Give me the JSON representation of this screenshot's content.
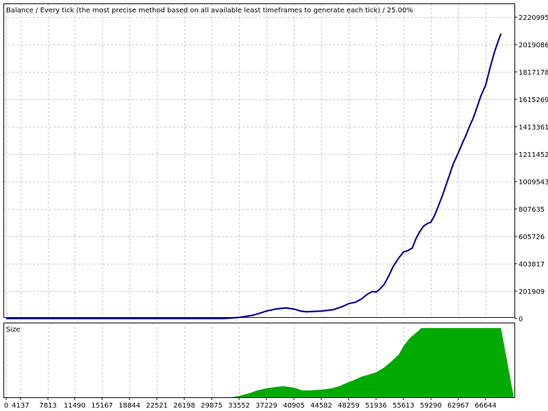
{
  "chart_data": [
    {
      "type": "line",
      "title": "Balance / Every tick (the most precise method based on all available least timeframes to generate each tick) / 25.00%",
      "x_ticks": [
        "0",
        "4137",
        "7813",
        "11490",
        "15167",
        "18844",
        "22521",
        "26198",
        "29875",
        "33552",
        "37229",
        "40905",
        "44582",
        "48259",
        "51936",
        "55613",
        "59290",
        "62967",
        "66644"
      ],
      "y_ticks": [
        "0",
        "201909",
        "403817",
        "605726",
        "807635",
        "1009543",
        "1211452",
        "1413361",
        "1615269",
        "1817178",
        "2019086",
        "2220995"
      ],
      "ylim": [
        0,
        2220995
      ],
      "grid": true,
      "series": [
        {
          "color": "#000099",
          "x": [
            0,
            4137,
            8000,
            15000,
            22500,
            29875,
            31500,
            33552,
            35500,
            37229,
            38500,
            39800,
            40905,
            41800,
            42600,
            44582,
            46200,
            47500,
            48259,
            49200,
            50000,
            50800,
            51500,
            51936,
            52300,
            53000,
            53600,
            54200,
            54900,
            55613,
            56200,
            56800,
            57300,
            57800,
            58300,
            58800,
            59290,
            59800,
            60300,
            60800,
            61300,
            61800,
            62300,
            62967,
            63500,
            64000,
            64500,
            65000,
            65500,
            66000,
            66644,
            67200,
            67800,
            68300,
            68700
          ],
          "y": [
            0,
            0,
            0,
            0,
            0,
            0,
            0,
            8000,
            25000,
            55000,
            70000,
            78000,
            70000,
            55000,
            50000,
            55000,
            65000,
            90000,
            110000,
            120000,
            145000,
            180000,
            200000,
            195000,
            210000,
            250000,
            310000,
            380000,
            440000,
            490000,
            500000,
            520000,
            590000,
            640000,
            680000,
            700000,
            710000,
            760000,
            830000,
            900000,
            980000,
            1060000,
            1140000,
            1220000,
            1290000,
            1350000,
            1420000,
            1480000,
            1560000,
            1640000,
            1720000,
            1840000,
            1960000,
            2040000,
            2100000
          ]
        }
      ]
    },
    {
      "type": "area",
      "title": "Size",
      "grid": true,
      "series": [
        {
          "color": "#00aa00",
          "x": [
            0,
            32500,
            33552,
            35000,
            36000,
            37229,
            38500,
            39500,
            40905,
            42000,
            43000,
            44582,
            46000,
            47000,
            48259,
            49000,
            50000,
            51000,
            51936,
            53000,
            54000,
            55000,
            55613,
            56500,
            57500,
            58000,
            59290,
            68700
          ],
          "y": [
            0,
            0,
            0.02,
            0.06,
            0.1,
            0.13,
            0.15,
            0.16,
            0.14,
            0.1,
            0.1,
            0.11,
            0.13,
            0.16,
            0.22,
            0.25,
            0.3,
            0.33,
            0.36,
            0.43,
            0.52,
            0.62,
            0.74,
            0.86,
            0.95,
            1,
            1,
            1
          ]
        }
      ]
    }
  ]
}
